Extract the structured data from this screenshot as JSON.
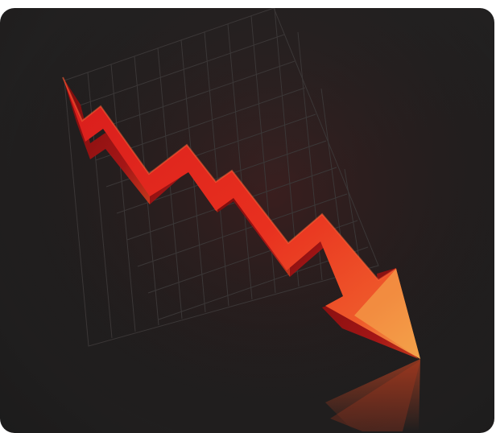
{
  "scene": {
    "subject": "falling-arrow",
    "colors": {
      "background": "#222020",
      "grid": "#3a3636",
      "arrow_front": "#e3261f",
      "arrow_side": "#8f1212",
      "arrow_highlight": "#f05a2a",
      "arrow_tip": "#f3a24a"
    }
  }
}
